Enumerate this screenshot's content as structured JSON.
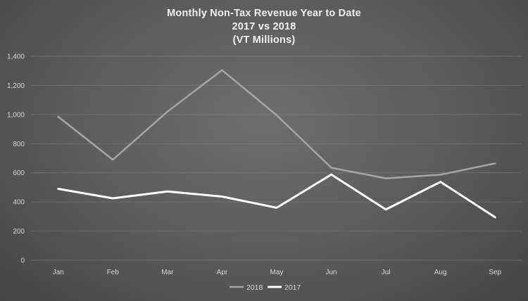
{
  "chart_data": {
    "type": "line",
    "title": [
      "Monthly Non-Tax Revenue Year to Date",
      "2017 vs 2018",
      "(VT Millions)"
    ],
    "categories": [
      "Jan",
      "Feb",
      "Mar",
      "Apr",
      "May",
      "Jun",
      "Jul",
      "Aug",
      "Sep"
    ],
    "series": [
      {
        "name": "2018",
        "color": "#a6a6a6",
        "values": [
          985,
          690,
          1020,
          1305,
          995,
          635,
          562,
          587,
          665
        ]
      },
      {
        "name": "2017",
        "color": "#ffffff",
        "values": [
          490,
          425,
          472,
          437,
          360,
          588,
          348,
          538,
          295
        ]
      }
    ],
    "ylim": [
      0,
      1400
    ],
    "yticks": [
      0,
      200,
      400,
      600,
      800,
      1000,
      1200,
      1400
    ],
    "ytick_labels": [
      "0",
      "200",
      "400",
      "600",
      "800",
      "1,000",
      "1,200",
      "1,400"
    ],
    "grid": true,
    "legend_position": "bottom"
  }
}
